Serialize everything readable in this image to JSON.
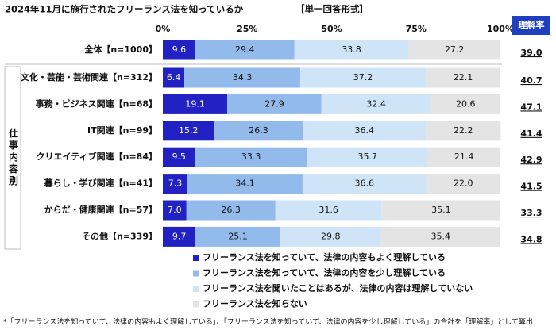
{
  "chart_data": {
    "type": "stacked_bar_100",
    "title": "2024年11月に施行されたフリーランス法を知っているか",
    "subtitle": "［単一回答形式］",
    "group_label": "仕事内容別",
    "categories": [
      "全体【n=1000】",
      "文化・芸能・芸術関連【n=312】",
      "事務・ビジネス関連【n=68】",
      "IT関連【n=99】",
      "クリエイティブ関連【n=84】",
      "暮らし・学び関連【n=41】",
      "からだ・健康関連【n=57】",
      "その他【n=339】"
    ],
    "series": [
      {
        "name": "フリーランス法を知っていて、法律の内容もよく理解している",
        "color": "#2222c4",
        "values": [
          9.6,
          6.4,
          19.1,
          15.2,
          9.5,
          7.3,
          7.0,
          9.7
        ],
        "value_labels": [
          "9.6",
          "6.4",
          "19.1",
          "15.2",
          "9.5",
          "7.3",
          "7.0",
          "9.7"
        ]
      },
      {
        "name": "フリーランス法を知っていて、法律の内容を少し理解している",
        "color": "#92bbeb",
        "values": [
          29.4,
          34.3,
          27.9,
          26.3,
          33.3,
          34.1,
          26.3,
          25.1
        ],
        "value_labels": [
          "29.4",
          "34.3",
          "27.9",
          "26.3",
          "33.3",
          "34.1",
          "26.3",
          "25.1"
        ]
      },
      {
        "name": "フリーランス法を聞いたことはあるが、法律の内容は理解していない",
        "color": "#cfe5f7",
        "values": [
          33.8,
          37.2,
          32.4,
          36.4,
          35.7,
          36.6,
          31.6,
          29.8
        ],
        "value_labels": [
          "33.8",
          "37.2",
          "32.4",
          "36.4",
          "35.7",
          "36.6",
          "31.6",
          "29.8"
        ]
      },
      {
        "name": "フリーランス法を知らない",
        "color": "#e4e4e4",
        "values": [
          27.2,
          22.1,
          20.6,
          22.2,
          21.4,
          22.0,
          35.1,
          35.4
        ],
        "value_labels": [
          "27.2",
          "22.1",
          "20.6",
          "22.2",
          "21.4",
          "22.0",
          "35.1",
          "35.4"
        ]
      }
    ],
    "xlim": [
      0,
      100
    ],
    "xticks": [
      {
        "value": 0,
        "label": "0%"
      },
      {
        "value": 25,
        "label": "25%"
      },
      {
        "value": 50,
        "label": "50%"
      },
      {
        "value": 75,
        "label": "75%"
      },
      {
        "value": 100,
        "label": "100%"
      }
    ],
    "rate_header": "理解率",
    "rate_header_color": "#1f3fbf",
    "rate_values": [
      39.0,
      40.7,
      47.1,
      41.4,
      42.9,
      41.5,
      33.3,
      34.8
    ],
    "rate_value_labels": [
      "39.0",
      "40.7",
      "47.1",
      "41.4",
      "42.9",
      "41.5",
      "33.3",
      "34.8"
    ],
    "note": "*「フリーランス法を知っていて、法律の内容もよく理解している」、「フリーランス法を知っていて、法律の内容を少し理解している」の合計を「理解率」として算出"
  }
}
